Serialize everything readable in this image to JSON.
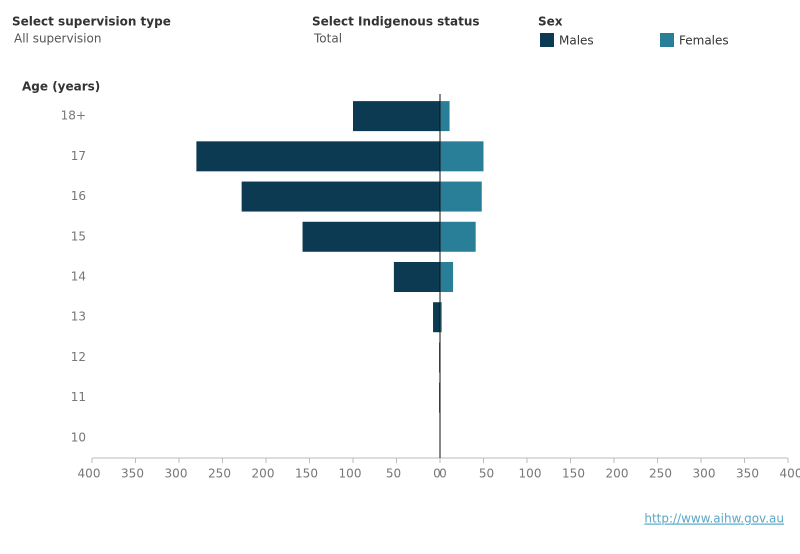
{
  "filters": [
    {
      "label": "Select supervision type",
      "value": "All supervision"
    },
    {
      "label": "Select Indigenous status",
      "value": "Total"
    }
  ],
  "chart_data": {
    "type": "pyramid",
    "y_label": "Age (years)",
    "legend_title": "Sex",
    "categories": [
      "18+",
      "17",
      "16",
      "15",
      "14",
      "13",
      "12",
      "11",
      "10"
    ],
    "series": [
      {
        "name": "Males",
        "color": "#0b3a52",
        "side": "left",
        "values": [
          100,
          280,
          228,
          158,
          53,
          8,
          1,
          1,
          0
        ]
      },
      {
        "name": "Females",
        "color": "#2a7f98",
        "side": "right",
        "values": [
          11,
          50,
          48,
          41,
          15,
          2,
          0,
          0,
          0
        ]
      }
    ],
    "xlim": [
      0,
      400
    ],
    "xticks": [
      0,
      50,
      100,
      150,
      200,
      250,
      300,
      350,
      400
    ],
    "grid": false
  },
  "footer": {
    "link": "http://www.aihw.gov.au"
  }
}
